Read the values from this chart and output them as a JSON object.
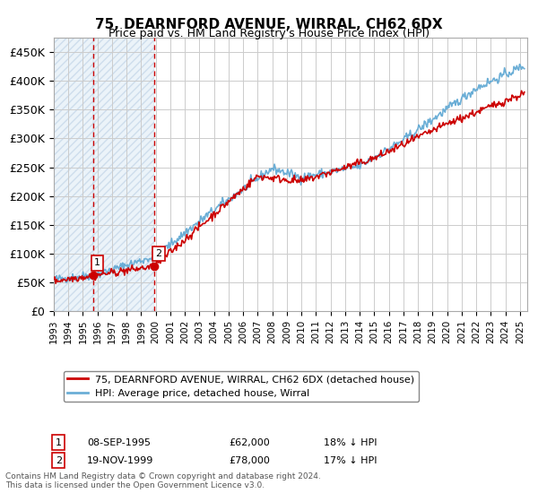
{
  "title": "75, DEARNFORD AVENUE, WIRRAL, CH62 6DX",
  "subtitle": "Price paid vs. HM Land Registry's House Price Index (HPI)",
  "ylabel_ticks": [
    "£0",
    "£50K",
    "£100K",
    "£150K",
    "£200K",
    "£250K",
    "£300K",
    "£350K",
    "£400K",
    "£450K"
  ],
  "ytick_values": [
    0,
    50000,
    100000,
    150000,
    200000,
    250000,
    300000,
    350000,
    400000,
    450000
  ],
  "ylim": [
    0,
    475000
  ],
  "xlim_start": 1993.0,
  "xlim_end": 2025.5,
  "legend_line1": "75, DEARNFORD AVENUE, WIRRAL, CH62 6DX (detached house)",
  "legend_line2": "HPI: Average price, detached house, Wirral",
  "table_rows": [
    {
      "num": "1",
      "date": "08-SEP-1995",
      "price": "£62,000",
      "hpi": "18% ↓ HPI"
    },
    {
      "num": "2",
      "date": "19-NOV-1999",
      "price": "£78,000",
      "hpi": "17% ↓ HPI"
    }
  ],
  "footnote": "Contains HM Land Registry data © Crown copyright and database right 2024.\nThis data is licensed under the Open Government Licence v3.0.",
  "purchase1_x": 1995.69,
  "purchase1_y": 62000,
  "purchase2_x": 1999.89,
  "purchase2_y": 78000,
  "bg_hatch_color": "#d8e4f0",
  "hpi_line_color": "#6baed6",
  "price_line_color": "#cc0000",
  "purchase_marker_color": "#cc0000",
  "vline_color": "#cc0000",
  "grid_color": "#cccccc",
  "hatch_region1_end": 1995.69,
  "hatch_region2_start": 1995.69,
  "hatch_region2_end": 1999.89
}
